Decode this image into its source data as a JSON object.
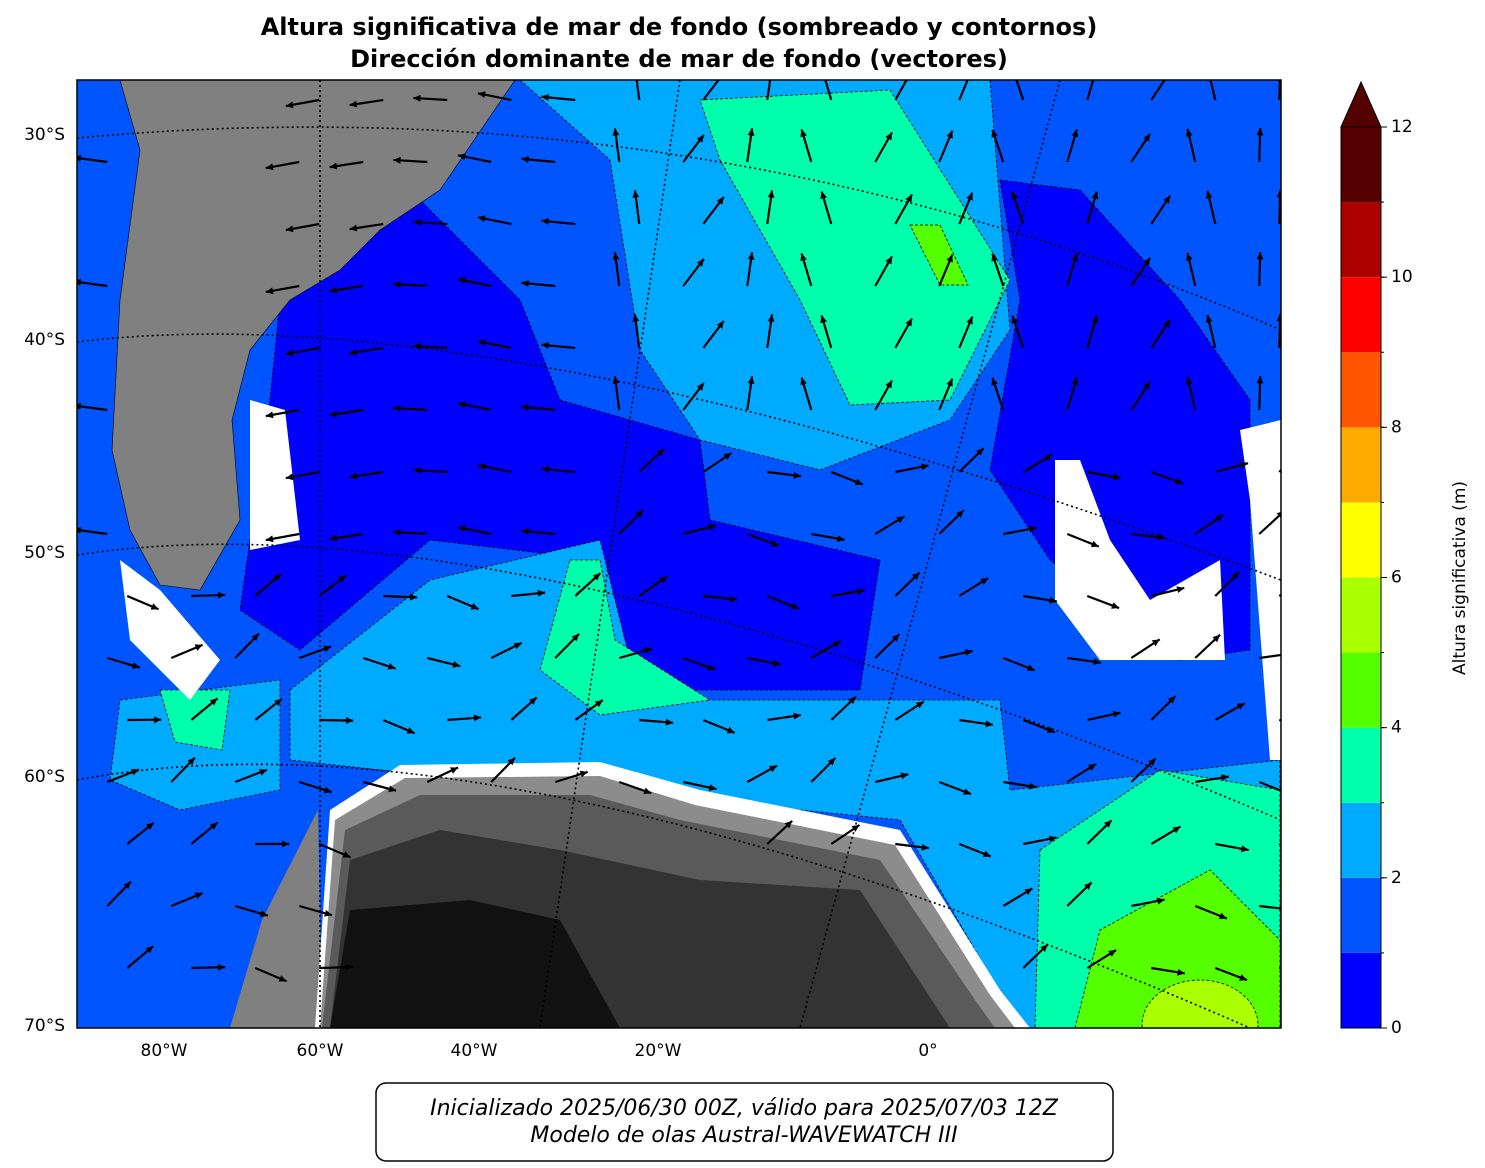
{
  "title": [
    "Altura significativa de mar de fondo (sombreado y contornos)",
    "Dirección dominante de mar de fondo (vectores)"
  ],
  "map": {
    "lat_labels": [
      "30°S",
      "40°S",
      "50°S",
      "60°S",
      "70°S"
    ],
    "lon_labels": [
      "80°W",
      "60°W",
      "40°W",
      "20°W",
      "0°"
    ]
  },
  "colorbar": {
    "label": "Altura significativa (m)",
    "lim": [
      0,
      12
    ],
    "ticks": [
      0,
      2,
      4,
      6,
      8,
      10,
      12
    ],
    "levels": [
      0,
      1,
      2,
      3,
      4,
      5,
      6,
      7,
      8,
      9,
      10,
      11,
      12
    ],
    "colors": [
      "#0000ff",
      "#0055ff",
      "#00aaff",
      "#00ffaa",
      "#55ff00",
      "#aaff00",
      "#ffff00",
      "#ffaa00",
      "#ff5500",
      "#ff0000",
      "#aa0000",
      "#550000"
    ],
    "extend_color": "#550000"
  },
  "footer": [
    "Inicializado 2025/06/30 00Z, válido para 2025/07/03 12Z",
    "Modelo de olas Austral-WAVEWATCH III"
  ]
}
